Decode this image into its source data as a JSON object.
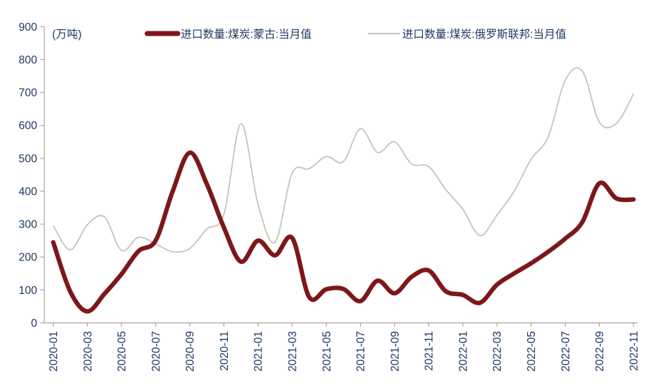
{
  "chart_data": {
    "type": "line",
    "title": "",
    "unit_label": "(万吨)",
    "xlabel": "",
    "ylabel": "",
    "ylim": [
      0,
      900
    ],
    "y_ticks": [
      0,
      100,
      200,
      300,
      400,
      500,
      600,
      700,
      800,
      900
    ],
    "grid": false,
    "legend_position": "top",
    "axis_color": "#A6A6A6",
    "text_color": "#1F3864",
    "x": [
      "2020-01",
      "2020-02",
      "2020-03",
      "2020-04",
      "2020-05",
      "2020-06",
      "2020-07",
      "2020-08",
      "2020-09",
      "2020-10",
      "2020-11",
      "2020-12",
      "2021-01",
      "2021-02",
      "2021-03",
      "2021-04",
      "2021-05",
      "2021-06",
      "2021-07",
      "2021-08",
      "2021-09",
      "2021-10",
      "2021-11",
      "2021-12",
      "2022-01",
      "2022-02",
      "2022-03",
      "2022-04",
      "2022-05",
      "2022-06",
      "2022-07",
      "2022-08",
      "2022-09",
      "2022-10",
      "2022-11"
    ],
    "x_tick_labels": [
      "2020-01",
      "2020-03",
      "2020-05",
      "2020-07",
      "2020-09",
      "2020-11",
      "2021-01",
      "2021-03",
      "2021-05",
      "2021-07",
      "2021-09",
      "2021-11",
      "2022-01",
      "2022-03",
      "2022-05",
      "2022-07",
      "2022-09",
      "2022-11"
    ],
    "series": [
      {
        "name": "进口数量:煤炭:蒙古:当月值",
        "color": "#7E1719",
        "stroke_width": 6.2,
        "values": [
          245,
          95,
          35,
          88,
          148,
          218,
          250,
          400,
          517,
          422,
          290,
          186,
          250,
          205,
          258,
          78,
          102,
          103,
          66,
          128,
          90,
          140,
          159,
          96,
          85,
          61,
          116,
          150,
          181,
          216,
          256,
          306,
          424,
          378,
          375
        ]
      },
      {
        "name": "进口数量:煤炭:俄罗斯联邦:当月值",
        "color": "#C5C5B8",
        "stroke_width": 1.8,
        "values": [
          295,
          222,
          298,
          322,
          220,
          260,
          240,
          216,
          226,
          285,
          330,
          605,
          360,
          245,
          455,
          468,
          505,
          490,
          590,
          518,
          550,
          483,
          475,
          405,
          345,
          265,
          327,
          399,
          497,
          565,
          737,
          765,
          610,
          606,
          695
        ]
      }
    ]
  }
}
